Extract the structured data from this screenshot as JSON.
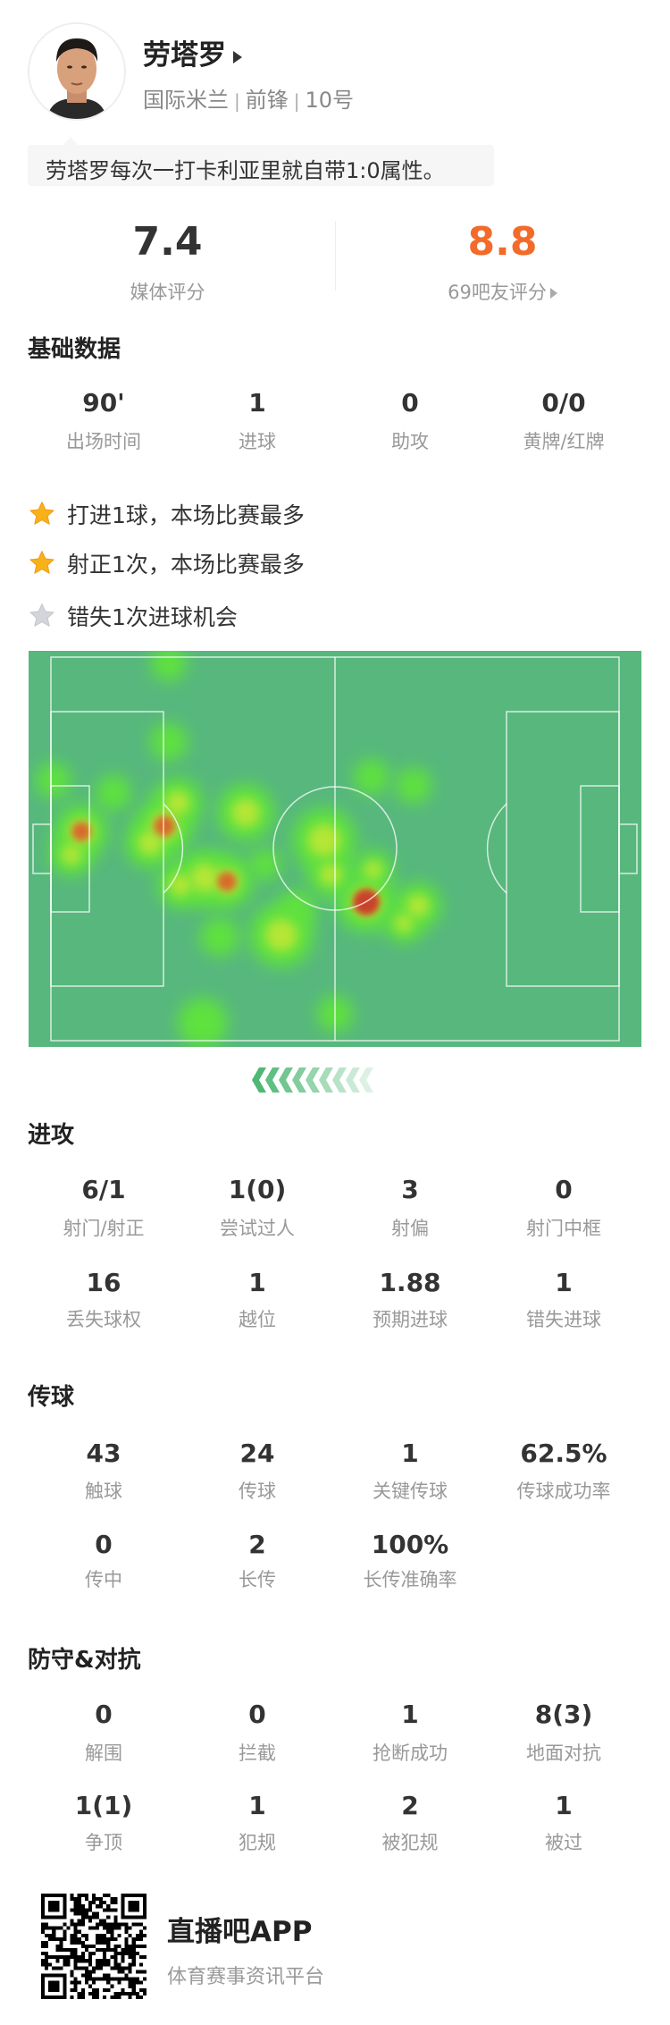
{
  "player": {
    "name": "劳塔罗",
    "team": "国际米兰",
    "position": "前锋",
    "number": "10号",
    "quote": "劳塔罗每次一打卡利亚里就自带1:0属性。"
  },
  "ratings": {
    "media_score": "7.4",
    "media_label": "媒体评分",
    "fan_score": "8.8",
    "fan_label": "69吧友评分",
    "fan_color": "#f26b2a"
  },
  "basic": {
    "title": "基础数据",
    "stats": [
      {
        "value": "90'",
        "label": "出场时间"
      },
      {
        "value": "1",
        "label": "进球"
      },
      {
        "value": "0",
        "label": "助攻"
      },
      {
        "value": "0/0",
        "label": "黄牌/红牌"
      }
    ]
  },
  "highlights": [
    {
      "icon": "star-gold-icon",
      "text": "打进1球，本场比赛最多"
    },
    {
      "icon": "star-gold-icon",
      "text": "射正1次，本场比赛最多"
    },
    {
      "icon": "star-gray-icon",
      "text": "错失1次进球机会"
    }
  ],
  "heatmap": {
    "pitch_color": "#57b77d",
    "attack_direction": "left"
  },
  "attack": {
    "title": "进攻",
    "stats": [
      {
        "value": "6/1",
        "label": "射门/射正"
      },
      {
        "value": "1(0)",
        "label": "尝试过人"
      },
      {
        "value": "3",
        "label": "射偏"
      },
      {
        "value": "0",
        "label": "射门中框"
      },
      {
        "value": "16",
        "label": "丢失球权"
      },
      {
        "value": "1",
        "label": "越位"
      },
      {
        "value": "1.88",
        "label": "预期进球"
      },
      {
        "value": "1",
        "label": "错失进球"
      }
    ]
  },
  "passing": {
    "title": "传球",
    "stats": [
      {
        "value": "43",
        "label": "触球"
      },
      {
        "value": "24",
        "label": "传球"
      },
      {
        "value": "1",
        "label": "关键传球"
      },
      {
        "value": "62.5%",
        "label": "传球成功率"
      },
      {
        "value": "0",
        "label": "传中"
      },
      {
        "value": "2",
        "label": "长传"
      },
      {
        "value": "100%",
        "label": "长传准确率"
      }
    ]
  },
  "defense": {
    "title": "防守&对抗",
    "stats": [
      {
        "value": "0",
        "label": "解围"
      },
      {
        "value": "0",
        "label": "拦截"
      },
      {
        "value": "1",
        "label": "抢断成功"
      },
      {
        "value": "8(3)",
        "label": "地面对抗"
      },
      {
        "value": "1(1)",
        "label": "争顶"
      },
      {
        "value": "1",
        "label": "犯规"
      },
      {
        "value": "2",
        "label": "被犯规"
      },
      {
        "value": "1",
        "label": "被过"
      }
    ]
  },
  "footer": {
    "app_name": "直播吧APP",
    "tagline": "体育赛事资讯平台"
  }
}
